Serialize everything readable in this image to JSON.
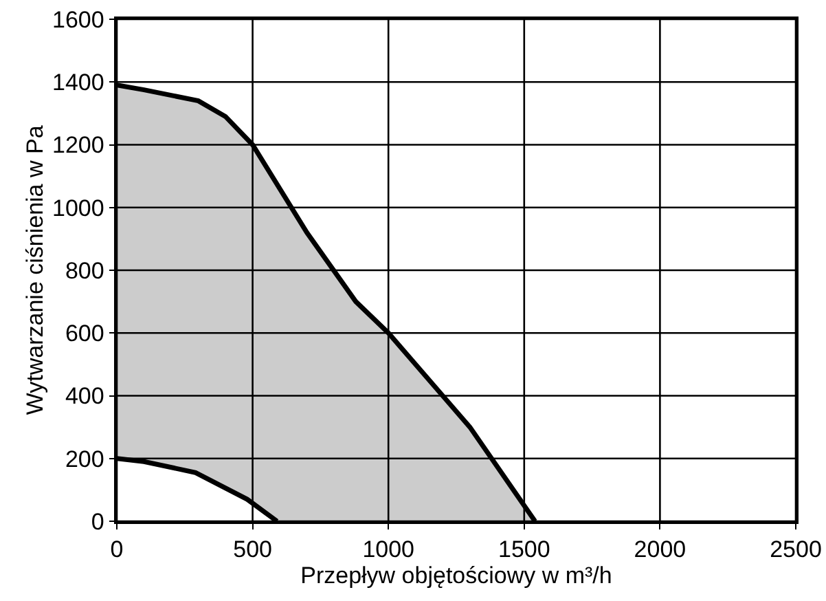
{
  "chart_data": {
    "type": "area",
    "xlabel": "Przepływ objętościowy w m³/h",
    "ylabel": "Wytwarzanie ciśnienia w Pa",
    "series": [
      {
        "type": "area",
        "color": "#ffffff",
        "x": [
          0,
          100,
          290,
          480,
          590
        ],
        "values": [
          200,
          190,
          155,
          70,
          0
        ]
      },
      {
        "color": "#cccccc",
        "x": [
          0,
          100,
          300,
          400,
          500,
          700,
          880,
          1000,
          1200,
          1300,
          1500,
          1540
        ],
        "values": [
          1390,
          1375,
          1340,
          1290,
          1200,
          920,
          700,
          600,
          400,
          300,
          50,
          0
        ]
      }
    ],
    "xlim": [
      0,
      2500
    ],
    "xticks": [
      0,
      500,
      1000,
      1500,
      2000,
      2500
    ],
    "ylim": [
      0,
      1600
    ],
    "yticks": [
      0,
      200,
      400,
      600,
      800,
      1000,
      1200,
      1400,
      1600
    ],
    "grid": true
  }
}
